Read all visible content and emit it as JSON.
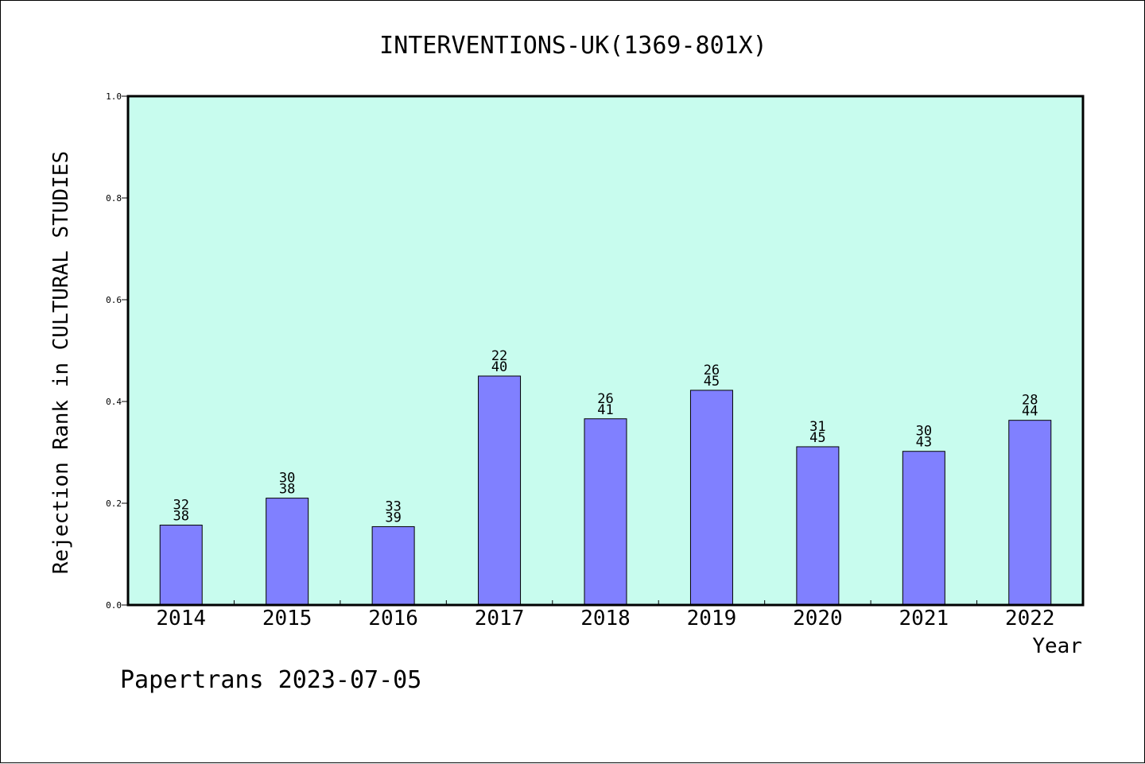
{
  "chart_data": {
    "type": "bar",
    "title": "INTERVENTIONS-UK(1369-801X)",
    "xlabel": "Year",
    "ylabel": "Rejection Rank in CULTURAL STUDIES",
    "ylim": [
      0,
      1.0
    ],
    "yticks": [
      "0.0",
      "0.2",
      "0.4",
      "0.6",
      "0.8",
      "1.0"
    ],
    "categories": [
      "2014",
      "2015",
      "2016",
      "2017",
      "2018",
      "2019",
      "2020",
      "2021",
      "2022"
    ],
    "values": [
      0.157,
      0.21,
      0.154,
      0.45,
      0.366,
      0.422,
      0.311,
      0.302,
      0.363
    ],
    "label_top": [
      "32",
      "30",
      "33",
      "22",
      "26",
      "26",
      "31",
      "30",
      "28"
    ],
    "label_bottom": [
      "38",
      "38",
      "39",
      "40",
      "41",
      "45",
      "45",
      "43",
      "44"
    ],
    "colors": {
      "plot_bg": "#c8fcee",
      "bar": "#8080ff"
    },
    "grid": false
  },
  "footer": "Papertrans 2023-07-05"
}
